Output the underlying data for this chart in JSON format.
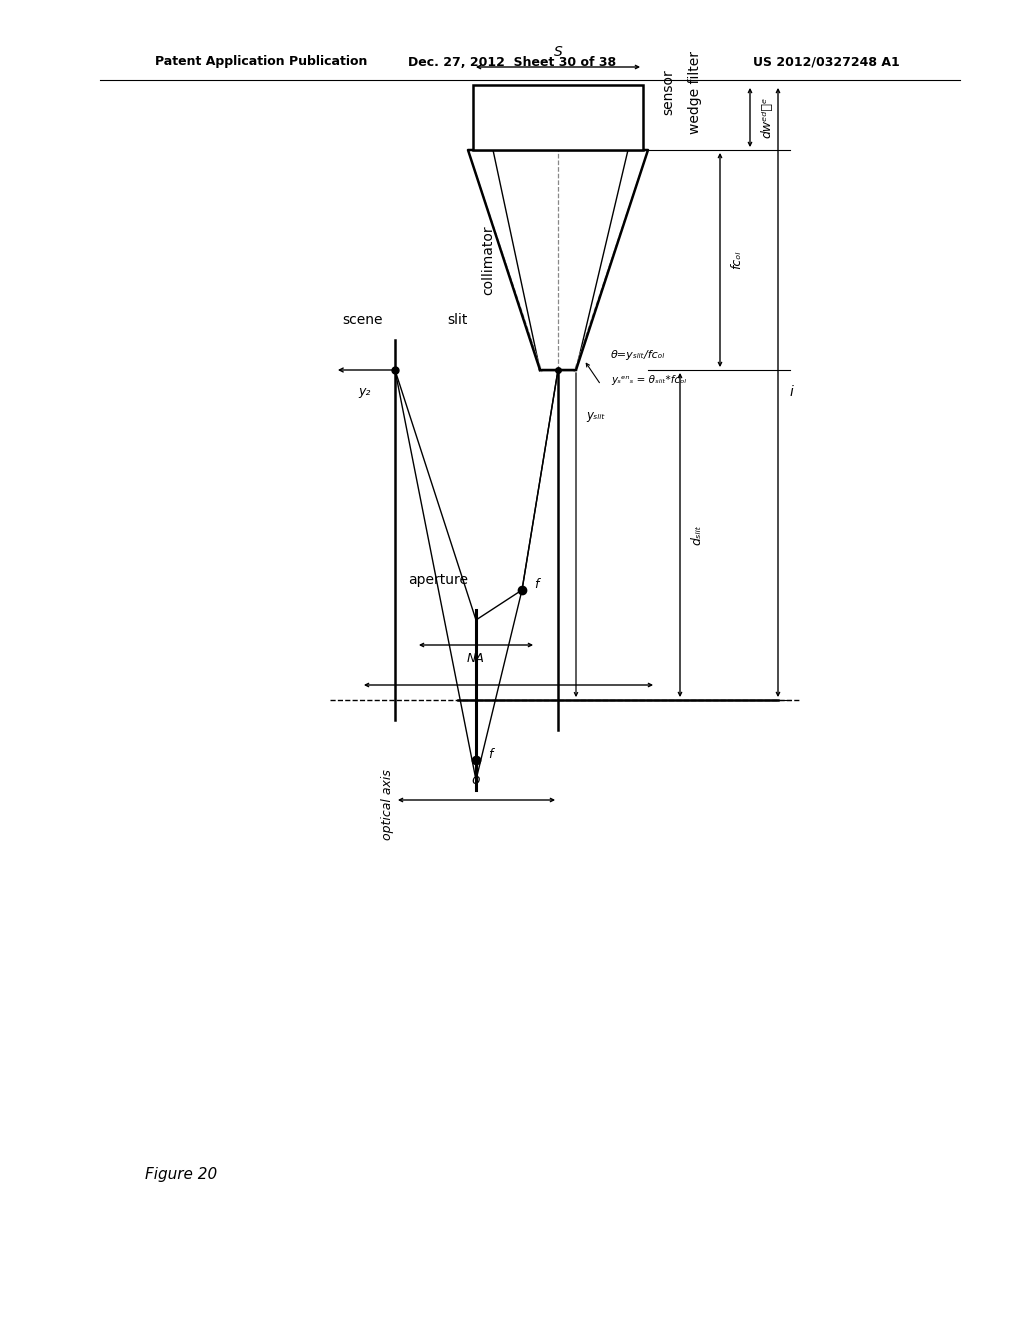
{
  "bg_color": "#ffffff",
  "line_color": "#000000",
  "gray_color": "#888888",
  "header_left": "Patent Application Publication",
  "header_center": "Dec. 27, 2012  Sheet 30 of 38",
  "header_right": "US 2012/0327248 A1",
  "figure_label": "Figure 20"
}
